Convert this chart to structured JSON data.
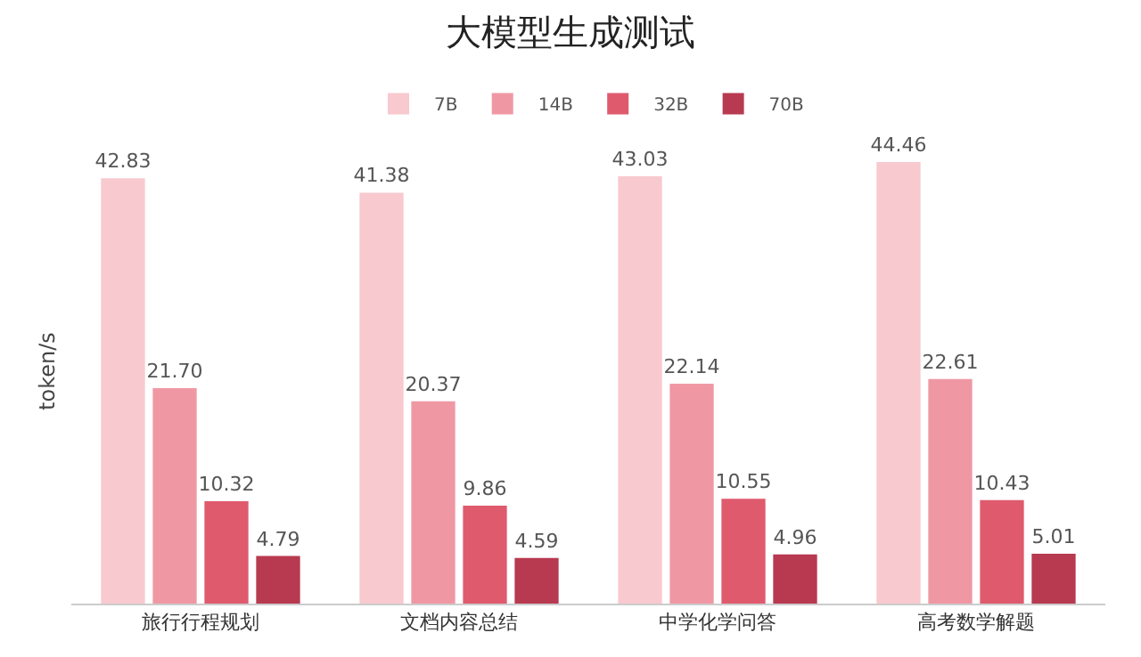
{
  "chart_data": {
    "type": "bar",
    "title": "大模型生成测试",
    "ylabel": "token/s",
    "categories": [
      "旅行行程规划",
      "文档内容总结",
      "中学化学问答",
      "高考数学解题"
    ],
    "series": [
      {
        "name": "7B",
        "color": "#f8c9cf",
        "values": [
          42.83,
          41.38,
          43.03,
          44.46
        ],
        "value_labels": [
          "42.83",
          "41.38",
          "43.03",
          "44.46"
        ]
      },
      {
        "name": "14B",
        "color": "#ef98a4",
        "values": [
          21.7,
          20.37,
          22.14,
          22.61
        ],
        "value_labels": [
          "21.70",
          "20.37",
          "22.14",
          "22.61"
        ]
      },
      {
        "name": "32B",
        "color": "#e05a6e",
        "values": [
          10.32,
          9.86,
          10.55,
          10.43
        ],
        "value_labels": [
          "10.32",
          "9.86",
          "10.55",
          "10.43"
        ]
      },
      {
        "name": "70B",
        "color": "#b83a50",
        "values": [
          4.79,
          4.59,
          4.96,
          5.01
        ],
        "value_labels": [
          "4.79",
          "4.59",
          "4.96",
          "5.01"
        ]
      }
    ],
    "legend": "top"
  }
}
